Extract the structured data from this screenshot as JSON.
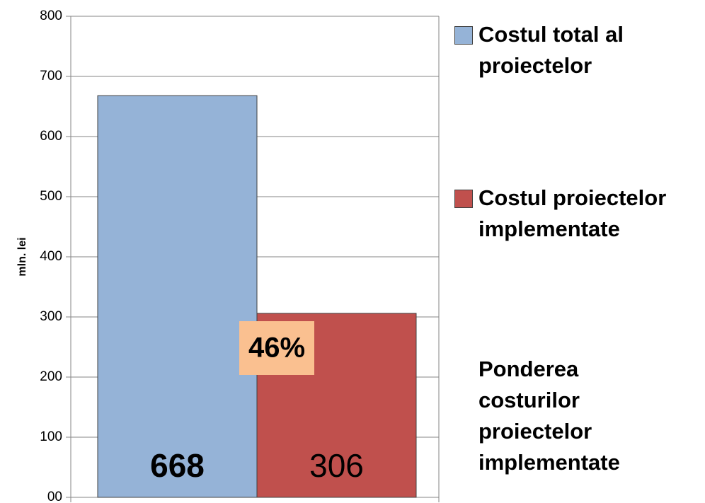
{
  "chart_data": {
    "type": "bar",
    "y_label": "mln. lei",
    "ylim": [
      0,
      800
    ],
    "yticks": [
      {
        "value": 0,
        "label": "00"
      },
      100,
      200,
      300,
      400,
      500,
      600,
      700,
      800
    ],
    "grid": true,
    "legend": "right",
    "series": [
      {
        "name": "Costul total al proiectelor",
        "color": "#95b3d7",
        "values": [
          668
        ]
      },
      {
        "name": "Costul proiectelor implementate",
        "color": "#c0504d",
        "values": [
          306
        ]
      },
      {
        "name": "Ponderea costurilor proiectelor implementate",
        "label_background": "#fac090",
        "values": [
          46
        ],
        "value_labels": [
          "46%"
        ]
      }
    ]
  }
}
